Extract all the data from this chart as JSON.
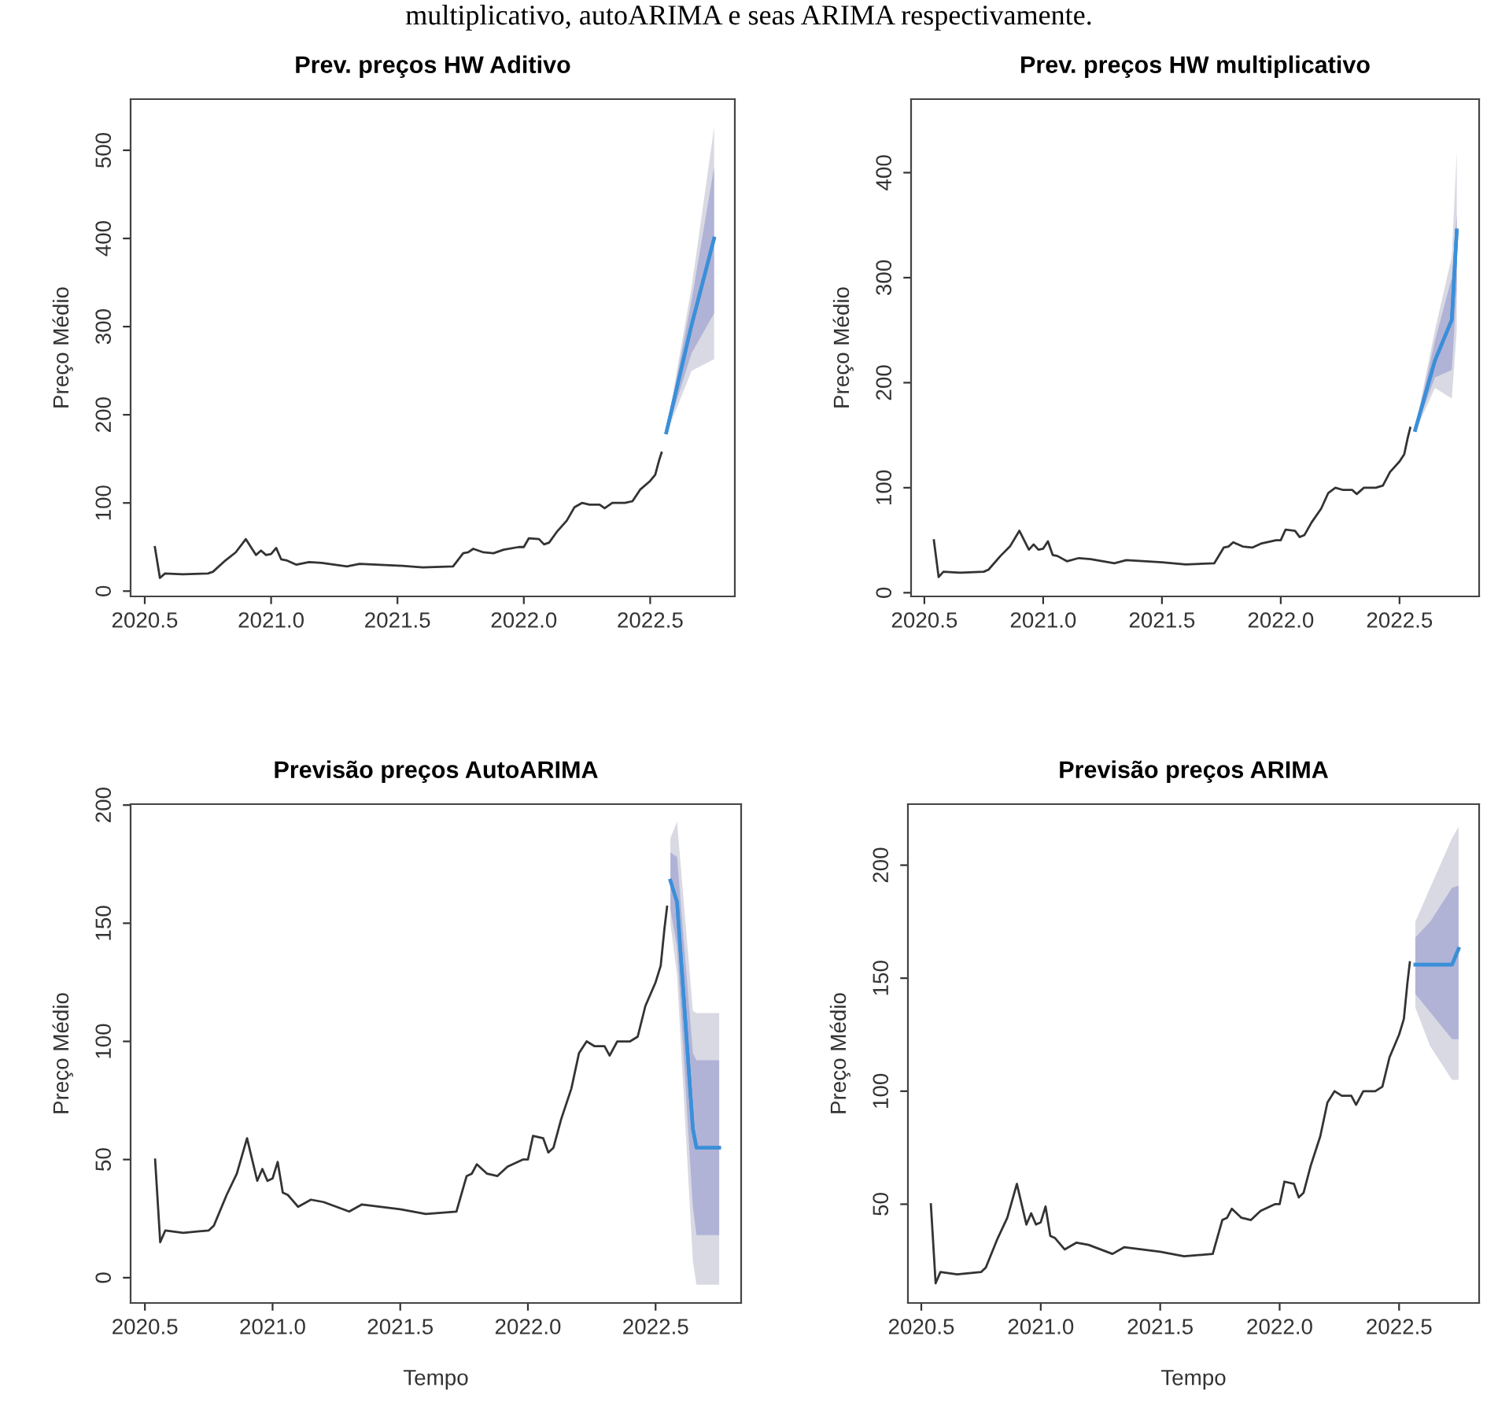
{
  "chart_data": [
    {
      "type": "line",
      "title": "Prev. preços HW Aditivo",
      "ylabel": "Preço Médio",
      "annotations": [
        "multiplicativo, autoARIMA e seas ARIMA respectivamente."
      ],
      "grid": false,
      "legend": false,
      "xlim": [
        2020.444,
        2022.835
      ],
      "ylim": [
        -6,
        558
      ],
      "xticks": [
        {
          "value": 2020.5,
          "label": "2020.5"
        },
        {
          "value": 2021,
          "label": "2021.0"
        },
        {
          "value": 2021.5,
          "label": "2021.5"
        },
        {
          "value": 2022,
          "label": "2022.0"
        },
        {
          "value": 2022.5,
          "label": "2022.5"
        }
      ],
      "yticks": [
        0,
        100,
        200,
        300,
        400,
        500
      ],
      "series": [
        {
          "color": "#333333",
          "x": [
            2020.54,
            2020.56,
            2020.58,
            2020.65,
            2020.75,
            2020.77,
            2020.82,
            2020.86,
            2020.9,
            2020.94,
            2020.96,
            2020.98,
            2021.0,
            2021.02,
            2021.04,
            2021.06,
            2021.1,
            2021.15,
            2021.2,
            2021.3,
            2021.35,
            2021.5,
            2021.6,
            2021.72,
            2021.76,
            2021.78,
            2021.8,
            2021.84,
            2021.88,
            2021.92,
            2021.98,
            2022.0,
            2022.02,
            2022.06,
            2022.08,
            2022.1,
            2022.13,
            2022.17,
            2022.2,
            2022.23,
            2022.26,
            2022.3,
            2022.32,
            2022.35,
            2022.4,
            2022.43,
            2022.46,
            2022.5,
            2022.52,
            2022.535,
            2022.545
          ],
          "values": [
            50,
            15,
            20,
            19,
            20,
            22,
            35,
            44,
            59,
            41,
            46,
            41,
            42,
            49,
            36,
            35,
            30,
            33,
            32,
            28,
            31,
            29,
            27,
            28,
            43,
            44,
            48,
            44,
            43,
            47,
            50,
            50,
            60,
            59,
            53,
            55,
            67,
            80,
            95,
            100,
            98,
            98,
            94,
            100,
            100,
            102,
            115,
            125,
            132,
            148,
            157
          ]
        },
        {
          "color": "#3b8fd9",
          "x": [
            2022.564,
            2022.664,
            2022.753
          ],
          "values": [
            180,
            302,
            400
          ],
          "lower": [
            178,
            250,
            263
          ],
          "upper": [
            182,
            345,
            526
          ]
        },
        {
          "color": "#3b8fd9",
          "x": [
            2022.564,
            2022.664,
            2022.753
          ],
          "values": [
            180,
            302,
            400
          ],
          "lower": [
            179,
            270,
            315
          ],
          "upper": [
            181,
            330,
            481
          ]
        }
      ]
    },
    {
      "type": "line",
      "title": "Prev. preços HW multiplicativo",
      "ylabel": "Preço Médio",
      "grid": false,
      "legend": false,
      "xlim": [
        2020.444,
        2022.835
      ],
      "ylim": [
        -3.5,
        470
      ],
      "xticks": [
        {
          "value": 2020.5,
          "label": "2020.5"
        },
        {
          "value": 2021,
          "label": "2021.0"
        },
        {
          "value": 2021.5,
          "label": "2021.5"
        },
        {
          "value": 2022,
          "label": "2022.0"
        },
        {
          "value": 2022.5,
          "label": "2022.5"
        }
      ],
      "yticks": [
        0,
        100,
        200,
        300,
        400
      ],
      "series": [
        {
          "color": "#333333",
          "x": [
            2020.54,
            2020.56,
            2020.58,
            2020.65,
            2020.75,
            2020.77,
            2020.82,
            2020.86,
            2020.9,
            2020.94,
            2020.96,
            2020.98,
            2021.0,
            2021.02,
            2021.04,
            2021.06,
            2021.1,
            2021.15,
            2021.2,
            2021.3,
            2021.35,
            2021.5,
            2021.6,
            2021.72,
            2021.76,
            2021.78,
            2021.8,
            2021.84,
            2021.88,
            2021.92,
            2021.98,
            2022.0,
            2022.02,
            2022.06,
            2022.08,
            2022.1,
            2022.13,
            2022.17,
            2022.2,
            2022.23,
            2022.26,
            2022.3,
            2022.32,
            2022.35,
            2022.4,
            2022.43,
            2022.46,
            2022.5,
            2022.52,
            2022.535,
            2022.545
          ],
          "values": [
            50,
            15,
            20,
            19,
            20,
            22,
            35,
            44,
            59,
            41,
            46,
            41,
            42,
            49,
            36,
            35,
            30,
            33,
            32,
            28,
            31,
            29,
            27,
            28,
            43,
            44,
            48,
            44,
            43,
            47,
            50,
            50,
            60,
            59,
            53,
            55,
            67,
            80,
            95,
            100,
            98,
            98,
            94,
            100,
            100,
            102,
            115,
            125,
            132,
            148,
            157
          ]
        },
        {
          "color": "#3b8fd9",
          "x": [
            2022.566,
            2022.649,
            2022.72,
            2022.741
          ],
          "values": [
            155,
            221,
            260,
            345
          ],
          "lower": [
            153,
            195,
            185,
            250
          ],
          "upper": [
            157,
            250,
            320,
            420
          ]
        },
        {
          "color": "#3b8fd9",
          "x": [
            2022.566,
            2022.649,
            2022.72,
            2022.741
          ],
          "values": [
            155,
            221,
            260,
            345
          ],
          "lower": [
            154,
            205,
            212,
            290
          ],
          "upper": [
            156,
            240,
            300,
            360
          ]
        }
      ]
    },
    {
      "type": "line",
      "title": "Previsão preços AutoARIMA",
      "xlabel": "Tempo",
      "ylabel": "Preço Médio",
      "grid": false,
      "legend": false,
      "xlim": [
        2020.444,
        2022.835
      ],
      "ylim": [
        -10.7,
        200.4
      ],
      "xticks": [
        {
          "value": 2020.5,
          "label": "2020.5"
        },
        {
          "value": 2021,
          "label": "2021.0"
        },
        {
          "value": 2021.5,
          "label": "2021.5"
        },
        {
          "value": 2022,
          "label": "2022.0"
        },
        {
          "value": 2022.5,
          "label": "2022.5"
        }
      ],
      "yticks": [
        0,
        50,
        100,
        150,
        200
      ],
      "series": [
        {
          "color": "#333333",
          "x": [
            2020.54,
            2020.56,
            2020.58,
            2020.65,
            2020.75,
            2020.77,
            2020.82,
            2020.86,
            2020.9,
            2020.94,
            2020.96,
            2020.98,
            2021.0,
            2021.02,
            2021.04,
            2021.06,
            2021.1,
            2021.15,
            2021.2,
            2021.3,
            2021.35,
            2021.5,
            2021.6,
            2021.72,
            2021.76,
            2021.78,
            2021.8,
            2021.84,
            2021.88,
            2021.92,
            2021.98,
            2022.0,
            2022.02,
            2022.06,
            2022.08,
            2022.1,
            2022.13,
            2022.17,
            2022.2,
            2022.23,
            2022.26,
            2022.3,
            2022.32,
            2022.35,
            2022.4,
            2022.43,
            2022.46,
            2022.5,
            2022.52,
            2022.535,
            2022.545
          ],
          "values": [
            50,
            15,
            20,
            19,
            20,
            22,
            35,
            44,
            59,
            41,
            46,
            41,
            42,
            49,
            36,
            35,
            30,
            33,
            32,
            28,
            31,
            29,
            27,
            28,
            43,
            44,
            48,
            44,
            43,
            47,
            50,
            50,
            60,
            59,
            53,
            55,
            67,
            80,
            95,
            100,
            98,
            98,
            94,
            100,
            100,
            102,
            115,
            125,
            132,
            148,
            157
          ]
        },
        {
          "color": "#3b8fd9",
          "x": [
            2022.558,
            2022.584,
            2022.646,
            2022.66,
            2022.749
          ],
          "values": [
            168,
            159,
            63,
            55,
            55
          ],
          "lower": [
            150,
            128,
            7,
            -3,
            -3
          ],
          "upper": [
            186,
            193,
            113,
            112,
            112
          ]
        },
        {
          "color": "#3b8fd9",
          "x": [
            2022.558,
            2022.584,
            2022.646,
            2022.66,
            2022.749
          ],
          "values": [
            168,
            159,
            63,
            55,
            55
          ],
          "lower": [
            156,
            140,
            30,
            18,
            18
          ],
          "upper": [
            180,
            178,
            95,
            92,
            92
          ]
        }
      ]
    },
    {
      "type": "line",
      "title": "Previsão preços ARIMA",
      "xlabel": "Tempo",
      "ylabel": "Preço Médio",
      "grid": false,
      "legend": false,
      "xlim": [
        2020.444,
        2022.835
      ],
      "ylim": [
        6.3,
        227
      ],
      "xticks": [
        {
          "value": 2020.5,
          "label": "2020.5"
        },
        {
          "value": 2021,
          "label": "2021.0"
        },
        {
          "value": 2021.5,
          "label": "2021.5"
        },
        {
          "value": 2022,
          "label": "2022.0"
        },
        {
          "value": 2022.5,
          "label": "2022.5"
        }
      ],
      "yticks": [
        50,
        100,
        150,
        200
      ],
      "series": [
        {
          "color": "#333333",
          "x": [
            2020.54,
            2020.56,
            2020.58,
            2020.65,
            2020.75,
            2020.77,
            2020.82,
            2020.86,
            2020.9,
            2020.94,
            2020.96,
            2020.98,
            2021.0,
            2021.02,
            2021.04,
            2021.06,
            2021.1,
            2021.15,
            2021.2,
            2021.3,
            2021.35,
            2021.5,
            2021.6,
            2021.72,
            2021.76,
            2021.78,
            2021.8,
            2021.84,
            2021.88,
            2021.92,
            2021.98,
            2022.0,
            2022.02,
            2022.06,
            2022.08,
            2022.1,
            2022.13,
            2022.17,
            2022.2,
            2022.23,
            2022.26,
            2022.3,
            2022.32,
            2022.35,
            2022.4,
            2022.43,
            2022.46,
            2022.5,
            2022.52,
            2022.535,
            2022.545
          ],
          "values": [
            50,
            15,
            20,
            19,
            20,
            22,
            35,
            44,
            59,
            41,
            46,
            41,
            42,
            49,
            36,
            35,
            30,
            33,
            32,
            28,
            31,
            29,
            27,
            28,
            43,
            44,
            48,
            44,
            43,
            47,
            50,
            50,
            60,
            59,
            53,
            55,
            67,
            80,
            95,
            100,
            98,
            98,
            94,
            100,
            100,
            102,
            115,
            125,
            132,
            148,
            157
          ]
        },
        {
          "color": "#3b8fd9",
          "x": [
            2022.568,
            2022.63,
            2022.722,
            2022.749
          ],
          "values": [
            156,
            156,
            156,
            163
          ],
          "lower": [
            137,
            120,
            105,
            105
          ],
          "upper": [
            175,
            190,
            212,
            217
          ]
        },
        {
          "color": "#3b8fd9",
          "x": [
            2022.568,
            2022.63,
            2022.722,
            2022.749
          ],
          "values": [
            156,
            156,
            156,
            163
          ],
          "lower": [
            143,
            135,
            123,
            123
          ],
          "upper": [
            168,
            175,
            190,
            191
          ]
        }
      ]
    }
  ]
}
